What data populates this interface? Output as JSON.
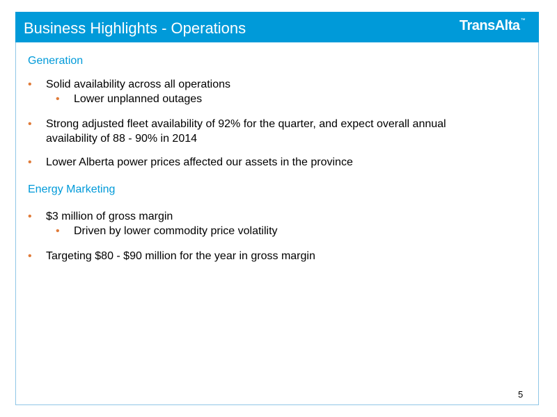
{
  "slide": {
    "title": "Business Highlights - Operations",
    "logo_text": "TransAlta",
    "logo_mark": "™",
    "page_number": "5",
    "colors": {
      "header": "#009ad9",
      "section_title": "#009ad9",
      "bullet": "#e07b39",
      "frame_border": "#8fc6e6"
    }
  },
  "sections": [
    {
      "title": "Generation",
      "bullets": [
        {
          "text": "Solid availability across all operations",
          "sub_bullets": [
            "Lower unplanned outages"
          ]
        },
        {
          "text_line1": "Strong adjusted fleet availability of 92% for the quarter, and expect overall annual",
          "text_line2": "availability of 88 - 90% in 2014"
        },
        {
          "text": "Lower Alberta power prices affected our assets in the province"
        }
      ]
    },
    {
      "title": "Energy Marketing",
      "bullets": [
        {
          "text": "$3 million of gross margin",
          "sub_bullets": [
            "Driven by lower commodity price volatility"
          ]
        },
        {
          "text": "Targeting $80 - $90 million for the year in gross margin"
        }
      ]
    }
  ]
}
